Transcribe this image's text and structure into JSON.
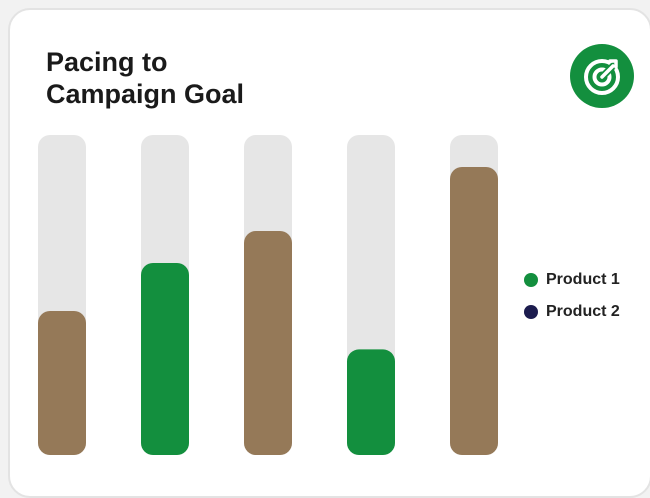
{
  "card": {
    "title": "Pacing to\nCampaign Goal"
  },
  "icons": {
    "badge": "target-arrow-icon"
  },
  "colors": {
    "product1": "#138f3e",
    "product2": "#1c1c4e",
    "bar_brown": "#957958",
    "track": "#e6e6e6",
    "badge_bg": "#138f3e"
  },
  "legend": [
    {
      "label": "Product 1",
      "color": "#138f3e"
    },
    {
      "label": "Product 2",
      "color": "#1c1c4e"
    }
  ],
  "chart_data": {
    "type": "bar",
    "orientation": "vertical",
    "ylim": [
      0,
      100
    ],
    "grid": false,
    "legend_position": "right",
    "bars": [
      {
        "value": 45,
        "color": "#957958"
      },
      {
        "value": 60,
        "color": "#138f3e"
      },
      {
        "value": 70,
        "color": "#957958"
      },
      {
        "value": 33,
        "color": "#138f3e"
      },
      {
        "value": 90,
        "color": "#957958"
      }
    ]
  }
}
